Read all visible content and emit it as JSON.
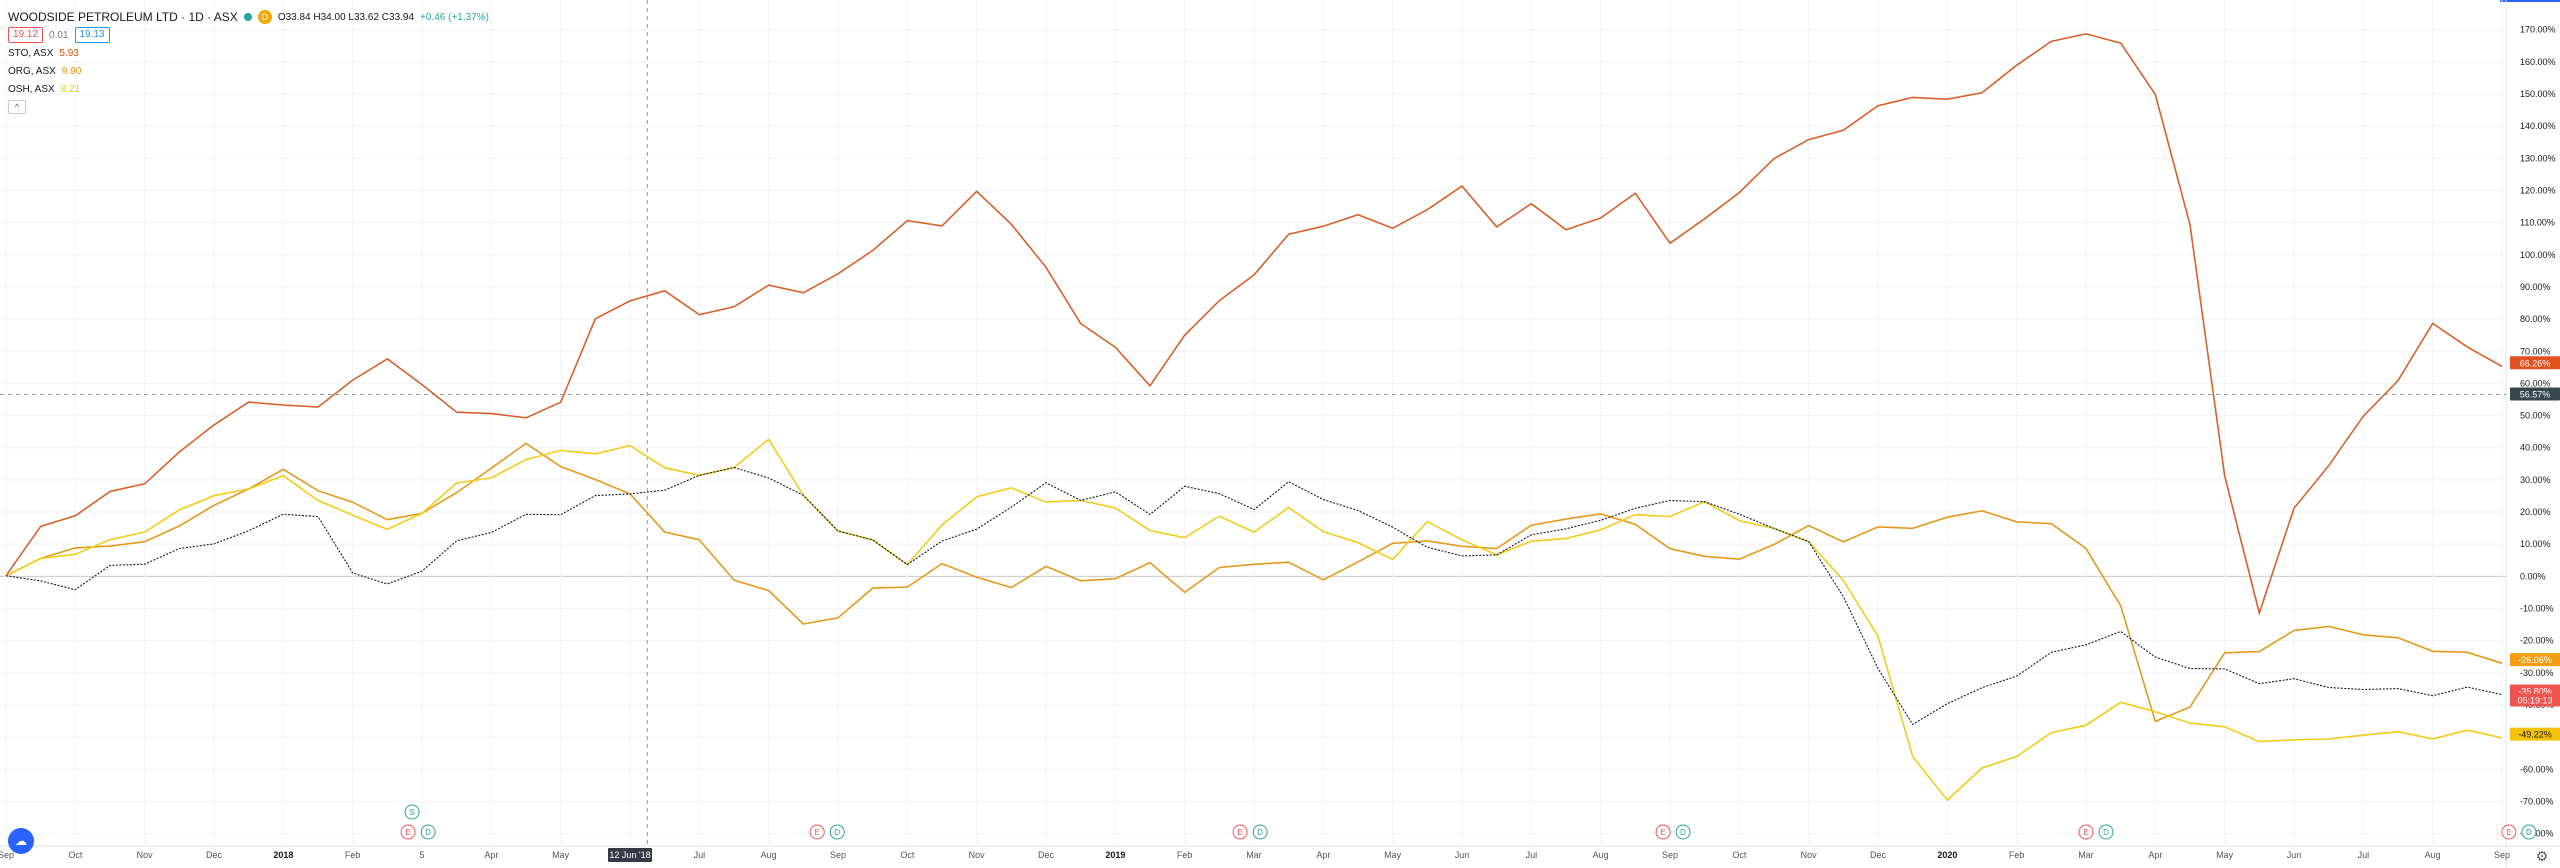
{
  "header": {
    "symbol_title": "WOODSIDE PETROLEUM LTD · 1D · ASX",
    "d_badge": "D",
    "ohlc": "O33.84 H34.00 L33.62 C33.94",
    "change": "+0.46 (+1.37%)",
    "sell_price": "19.12",
    "spread": "0.01",
    "buy_price": "19.13"
  },
  "legend_items": [
    {
      "symbol": "STO, ASX",
      "value": "5.93",
      "color": "#d35400"
    },
    {
      "symbol": "ORG, ASX",
      "value": "9.90",
      "color": "#e5940b"
    },
    {
      "symbol": "OSH, ASX",
      "value": "8.21",
      "color": "#f1c40f"
    }
  ],
  "colors": {
    "sto": "#d7612a",
    "org": "#e39a1c",
    "osh": "#f2cc1a",
    "wpl": "#131722",
    "price_axis_current": "#37474f"
  },
  "chart_data": {
    "type": "line",
    "y_unit": "% change",
    "ylim": [
      -82,
      178
    ],
    "y_ticks": [
      170,
      160,
      150,
      140,
      130,
      120,
      110,
      100,
      90,
      80,
      70,
      60,
      50,
      40,
      30,
      20,
      10,
      0,
      -10,
      -20,
      -30,
      -40,
      -50,
      -60,
      -70,
      -80
    ],
    "y_tick_labels": [
      "170.00%",
      "160.00%",
      "150.00%",
      "140.00%",
      "130.00%",
      "120.00%",
      "110.00%",
      "100.00%",
      "90.00%",
      "80.00%",
      "70.00%",
      "60.00%",
      "50.00%",
      "40.00%",
      "30.00%",
      "20.00%",
      "10.00%",
      "0.00%",
      "-10.00%",
      "-20.00%",
      "-30.00%",
      "-40.00%",
      "-50.00%",
      "-60.00%",
      "-70.00%",
      "-80.00%"
    ],
    "x_labels": [
      "Sep",
      "Oct",
      "Nov",
      "Dec",
      "2018",
      "Feb",
      "5",
      "Apr",
      "May",
      "12 Jun '18",
      "Jul",
      "Aug",
      "Sep",
      "Oct",
      "Nov",
      "Dec",
      "2019",
      "Feb",
      "Mar",
      "Apr",
      "May",
      "Jun",
      "Jul",
      "Aug",
      "Sep",
      "Oct",
      "Nov",
      "Dec",
      "2020",
      "Feb",
      "Mar",
      "Apr",
      "May",
      "Jun",
      "Jul",
      "Aug",
      "Sep"
    ],
    "x": [
      0,
      0.5,
      1,
      1.5,
      2,
      2.5,
      3,
      3.5,
      4,
      4.5,
      5,
      5.5,
      6,
      6.5,
      7,
      7.5,
      8,
      8.5,
      9,
      9.5,
      10,
      10.5,
      11,
      11.5,
      12,
      12.5,
      13,
      13.5,
      14,
      14.5,
      15,
      15.5,
      16,
      16.5,
      17,
      17.5,
      18,
      18.5,
      19,
      19.5,
      20,
      20.5,
      21,
      21.5,
      22,
      22.5,
      23,
      23.5,
      24,
      24.5,
      25,
      25.5,
      26,
      26.5,
      27,
      27.5,
      28,
      28.5,
      29,
      29.5,
      30,
      30.5,
      31,
      31.5,
      32,
      32.5,
      33,
      33.5,
      34,
      34.5,
      35,
      35.5,
      36
    ],
    "crosshair_x": 9.25,
    "crosshair_y": 56.57,
    "series": [
      {
        "key": "sto",
        "values": [
          0,
          15,
          20,
          25,
          30,
          38,
          47,
          55,
          52,
          54,
          60,
          68,
          60,
          50,
          52,
          48,
          55,
          80,
          85,
          90,
          80,
          85,
          90,
          88,
          95,
          100,
          112,
          108,
          120,
          110,
          95,
          80,
          70,
          60,
          75,
          85,
          95,
          105,
          110,
          112,
          108,
          115,
          120,
          110,
          115,
          108,
          112,
          118,
          105,
          110,
          120,
          130,
          135,
          140,
          145,
          150,
          148,
          150,
          160,
          165,
          170,
          165,
          150,
          110,
          30,
          -10,
          20,
          35,
          50,
          60,
          80,
          70,
          66.26
        ]
      },
      {
        "key": "org",
        "values": [
          0,
          5,
          10,
          8,
          12,
          15,
          22,
          28,
          32,
          28,
          22,
          18,
          20,
          25,
          35,
          40,
          35,
          30,
          25,
          15,
          10,
          0,
          -5,
          -15,
          -12,
          -5,
          -2,
          3,
          0,
          -3,
          2,
          0,
          -2,
          5,
          -5,
          2,
          5,
          3,
          0,
          4,
          10,
          12,
          8,
          10,
          15,
          18,
          20,
          15,
          10,
          5,
          6,
          10,
          15,
          12,
          14,
          16,
          18,
          20,
          18,
          15,
          10,
          -10,
          -45,
          -40,
          -25,
          -22,
          -18,
          -15,
          -18,
          -20,
          -22,
          -25,
          -26.06
        ]
      },
      {
        "key": "osh",
        "values": [
          0,
          5,
          8,
          10,
          15,
          20,
          25,
          28,
          30,
          25,
          18,
          15,
          20,
          28,
          32,
          35,
          40,
          38,
          40,
          35,
          30,
          35,
          42,
          25,
          15,
          10,
          5,
          15,
          25,
          28,
          22,
          25,
          20,
          15,
          12,
          18,
          15,
          20,
          15,
          10,
          5,
          18,
          10,
          8,
          10,
          12,
          15,
          18,
          20,
          22,
          18,
          15,
          10,
          0,
          -20,
          -55,
          -70,
          -60,
          -55,
          -50,
          -45,
          -40,
          -42,
          -45,
          -48,
          -50,
          -52,
          -50,
          -49.22,
          -49.22,
          -49.22,
          -49.22,
          -49.22
        ]
      },
      {
        "key": "wpl",
        "values": [
          0,
          -2,
          -3,
          2,
          5,
          8,
          10,
          15,
          18,
          20,
          0,
          -2,
          2,
          10,
          15,
          18,
          20,
          25,
          25,
          28,
          30,
          35,
          30,
          25,
          15,
          10,
          5,
          10,
          15,
          22,
          28,
          25,
          25,
          20,
          28,
          25,
          22,
          28,
          25,
          20,
          15,
          10,
          5,
          8,
          12,
          15,
          18,
          20,
          25,
          22,
          20,
          15,
          10,
          -5,
          -30,
          -45,
          -40,
          -35,
          -30,
          -25,
          -20,
          -18,
          -25,
          -28,
          -30,
          -32,
          -33,
          -34,
          -35,
          -35.8,
          -35.8,
          -35.8,
          -35.8
        ]
      }
    ],
    "price_tags": [
      {
        "label": "66.26%",
        "value": 66.26,
        "series": "sto"
      },
      {
        "label": "56.57%",
        "value": 56.57,
        "series": "crosshair"
      },
      {
        "label": "-26.06%",
        "value": -26.06,
        "series": "org"
      },
      {
        "label": "-35.80%",
        "value": -35.8,
        "series": "wpl"
      },
      {
        "label": "05:19:13",
        "value": -38.6,
        "series": "wpl"
      },
      {
        "label": "-49.22%",
        "value": -49.22,
        "series": "osh"
      }
    ],
    "events": [
      {
        "x": 5.8,
        "labels": [
          "E",
          "D"
        ],
        "stacked": "S"
      },
      {
        "x": 11.7,
        "labels": [
          "E",
          "D"
        ]
      },
      {
        "x": 17.8,
        "labels": [
          "E",
          "D"
        ]
      },
      {
        "x": 23.9,
        "labels": [
          "E",
          "D"
        ]
      },
      {
        "x": 30.0,
        "labels": [
          "E",
          "D"
        ]
      },
      {
        "x": 36.1,
        "labels": [
          "E",
          "D"
        ]
      }
    ]
  }
}
